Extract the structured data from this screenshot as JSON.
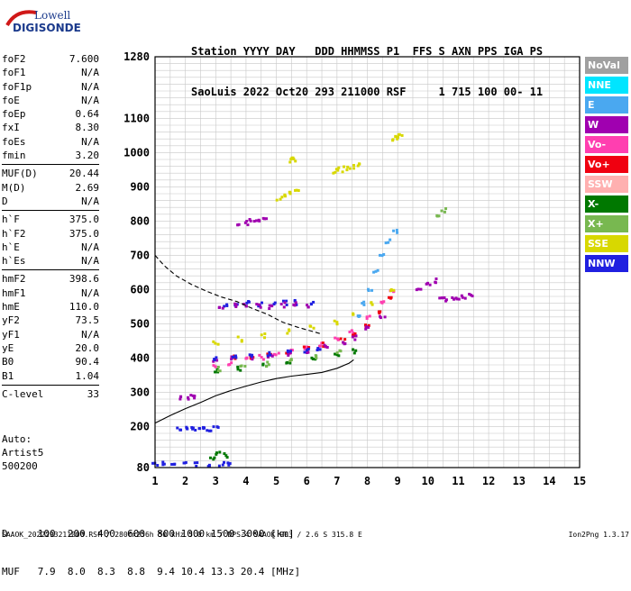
{
  "logo": {
    "line1": "Lowell",
    "line2": "DIGISONDE"
  },
  "header": {
    "line1": "Station YYYY DAY   DDD HHMMSS P1  FFS S AXN PPS IGA PS",
    "line2": "SaoLuis 2022 Oct20 293 211000 RSF     1 715 100 00- 11"
  },
  "params_groups": [
    [
      [
        "foF2",
        "7.600"
      ],
      [
        "foF1",
        "N/A"
      ],
      [
        "foF1p",
        "N/A"
      ],
      [
        "foE",
        "N/A"
      ],
      [
        "foEp",
        "0.64"
      ],
      [
        "fxI",
        "8.30"
      ],
      [
        "foEs",
        "N/A"
      ],
      [
        "fmin",
        "3.20"
      ]
    ],
    [
      [
        "MUF(D)",
        "20.44"
      ],
      [
        "M(D)",
        "2.69"
      ],
      [
        "D",
        "N/A"
      ]
    ],
    [
      [
        "h`F",
        "375.0"
      ],
      [
        "h`F2",
        "375.0"
      ],
      [
        "h`E",
        "N/A"
      ],
      [
        "h`Es",
        "N/A"
      ]
    ],
    [
      [
        "hmF2",
        "398.6"
      ],
      [
        "hmF1",
        "N/A"
      ],
      [
        "hmE",
        "110.0"
      ],
      [
        "yF2",
        "73.5"
      ],
      [
        "yF1",
        "N/A"
      ],
      [
        "yE",
        "20.0"
      ],
      [
        "B0",
        "90.4"
      ],
      [
        "B1",
        "1.04"
      ]
    ],
    [
      [
        "C-level",
        "33"
      ]
    ]
  ],
  "misc": {
    "auto": "Auto:",
    "artist": "Artist5",
    "code": "500200"
  },
  "bottom": {
    "d_row": "D     100  200  400  600  800 1000 1500 3000 [km]",
    "muf_row": "MUF   7.9  8.0  8.3  8.8  9.4 10.4 13.3 20.4 [MHz]"
  },
  "footer": {
    "left": "SAAOK_2022293211000.RSF / 280fx256h 50 kHz 5.0 km / DPS-4 SAAOK 903 / 2.6 S 315.8 E",
    "right": "Ion2Png 1.3.17"
  },
  "legend": [
    {
      "label": "NoVal",
      "color": "#a0a0a0",
      "text": "#ffffff"
    },
    {
      "label": "NNE",
      "color": "#00e5ff",
      "text": "#ffffff"
    },
    {
      "label": "E",
      "color": "#4aa8f0",
      "text": "#ffffff"
    },
    {
      "label": "W",
      "color": "#a000b0",
      "text": "#ffffff"
    },
    {
      "label": "Vo-",
      "color": "#ff3fb0",
      "text": "#ffffff"
    },
    {
      "label": "Vo+",
      "color": "#f00010",
      "text": "#ffffff"
    },
    {
      "label": "SSW",
      "color": "#ffb0b0",
      "text": "#ffffff"
    },
    {
      "label": "X-",
      "color": "#007800",
      "text": "#ffffff"
    },
    {
      "label": "X+",
      "color": "#78b850",
      "text": "#ffffff"
    },
    {
      "label": "SSE",
      "color": "#d8d800",
      "text": "#ffffff"
    },
    {
      "label": "NNW",
      "color": "#2020e0",
      "text": "#ffffff"
    }
  ],
  "chart_data": {
    "type": "scatter",
    "xlim": [
      1,
      15
    ],
    "ylim": [
      80,
      1280
    ],
    "xticks": [
      1,
      2,
      3,
      4,
      5,
      6,
      7,
      8,
      9,
      10,
      11,
      12,
      13,
      14,
      15
    ],
    "yticks": [
      80,
      200,
      300,
      400,
      500,
      600,
      700,
      800,
      900,
      1000,
      1100,
      1280
    ],
    "grid": true,
    "curves": [
      {
        "style": "dashed",
        "x": [
          1.0,
          1.3,
          1.7,
          2.2,
          2.7,
          3.2,
          3.7,
          4.2,
          4.7,
          5.2,
          5.7,
          6.1,
          6.5
        ],
        "y": [
          700,
          670,
          640,
          615,
          595,
          578,
          565,
          545,
          528,
          505,
          490,
          480,
          470
        ]
      },
      {
        "style": "solid",
        "x": [
          1.0,
          1.5,
          2.0,
          2.5,
          3.0,
          3.5,
          4.0,
          4.5,
          5.0,
          5.5,
          6.0,
          6.5,
          7.0,
          7.4,
          7.55
        ],
        "y": [
          210,
          232,
          252,
          270,
          290,
          305,
          318,
          330,
          340,
          347,
          352,
          358,
          370,
          385,
          395
        ]
      }
    ],
    "traces": [
      {
        "color": "#ff3fb0",
        "x": [
          3.0,
          3.5,
          4.0,
          4.5,
          5.0,
          5.5,
          6.0,
          6.5,
          7.0,
          7.5,
          8.0,
          8.5,
          8.8
        ],
        "y": [
          375,
          385,
          395,
          402,
          410,
          420,
          430,
          440,
          455,
          475,
          520,
          560,
          600
        ]
      },
      {
        "color": "#f00010",
        "x": [
          3.6,
          4.2,
          4.8,
          5.4,
          6.0,
          6.6,
          7.2,
          7.6,
          8.0,
          8.4,
          8.8
        ],
        "y": [
          400,
          405,
          410,
          418,
          428,
          438,
          450,
          465,
          490,
          530,
          580
        ]
      },
      {
        "color": "#a000b0",
        "x": [
          3.0,
          3.6,
          4.2,
          4.8,
          5.4,
          6.0,
          6.6,
          7.2,
          7.6,
          8.0,
          8.5
        ],
        "y": [
          395,
          398,
          402,
          408,
          414,
          422,
          432,
          445,
          460,
          485,
          520
        ]
      },
      {
        "color": "#2020e0",
        "x": [
          3.0,
          3.6,
          4.2,
          4.8,
          5.4,
          6.0,
          6.4
        ],
        "y": [
          400,
          402,
          405,
          410,
          415,
          420,
          425
        ]
      },
      {
        "color": "#007800",
        "x": [
          3.0,
          3.8,
          4.6,
          5.4,
          6.2,
          7.0,
          7.6
        ],
        "y": [
          365,
          370,
          378,
          388,
          398,
          410,
          420
        ]
      },
      {
        "color": "#78b850",
        "x": [
          3.1,
          3.9,
          4.7,
          5.5,
          6.3,
          7.1
        ],
        "y": [
          368,
          374,
          382,
          392,
          402,
          415
        ]
      },
      {
        "color": "#d8d800",
        "x": [
          3.0,
          3.8,
          4.6,
          5.4,
          6.2,
          7.0,
          7.6,
          8.2,
          8.8
        ],
        "y": [
          445,
          455,
          465,
          478,
          490,
          505,
          525,
          560,
          600
        ]
      },
      {
        "color": "#4aa8f0",
        "x": [
          7.7,
          7.9,
          8.1,
          8.3,
          8.5,
          8.7,
          8.9
        ],
        "y": [
          520,
          560,
          600,
          650,
          700,
          740,
          770
        ]
      },
      {
        "color": "#2020e0",
        "x": [
          3.3,
          3.7,
          4.1,
          4.5,
          4.9,
          5.3,
          5.7,
          6.2
        ],
        "y": [
          555,
          558,
          560,
          558,
          556,
          560,
          562,
          558
        ]
      },
      {
        "color": "#a000b0",
        "x": [
          3.2,
          3.6,
          4.0,
          4.4,
          4.8,
          5.2,
          5.6,
          6.0
        ],
        "y": [
          548,
          552,
          555,
          553,
          550,
          555,
          558,
          552
        ]
      },
      {
        "color": "#d8d800",
        "x": [
          5.1,
          5.3,
          5.5,
          5.7
        ],
        "y": [
          865,
          872,
          880,
          885
        ]
      },
      {
        "color": "#a000b0",
        "x": [
          3.8,
          4.0,
          4.2,
          4.4,
          4.6
        ],
        "y": [
          790,
          795,
          800,
          805,
          810
        ]
      },
      {
        "color": "#d8d800",
        "x": [
          6.9,
          7.1,
          7.3,
          7.5,
          7.7
        ],
        "y": [
          945,
          950,
          955,
          958,
          962
        ]
      },
      {
        "color": "#d8d800",
        "x": [
          8.9,
          9.0,
          9.1
        ],
        "y": [
          1040,
          1045,
          1048
        ]
      },
      {
        "color": "#d8d800",
        "x": [
          5.5,
          5.6
        ],
        "y": [
          978,
          980
        ]
      },
      {
        "color": "#a000b0",
        "x": [
          10.4,
          10.6,
          10.8,
          11.0,
          11.2,
          11.4
        ],
        "y": [
          570,
          572,
          575,
          578,
          580,
          582
        ]
      },
      {
        "color": "#2020e0",
        "x": [
          1.8,
          2.0,
          2.2,
          2.4,
          2.6,
          2.8,
          3.0
        ],
        "y": [
          193,
          193,
          193,
          193,
          193,
          193,
          193
        ]
      },
      {
        "color": "#2020e0",
        "x": [
          1.0,
          1.3,
          1.6,
          2.0,
          2.4,
          2.8,
          3.2,
          3.4
        ],
        "y": [
          90,
          90,
          90,
          90,
          90,
          90,
          90,
          90
        ]
      },
      {
        "color": "#a000b0",
        "x": [
          1.9,
          2.1,
          2.3
        ],
        "y": [
          285,
          285,
          285
        ]
      },
      {
        "color": "#007800",
        "x": [
          2.9,
          3.1,
          3.3
        ],
        "y": [
          110,
          120,
          115
        ]
      },
      {
        "color": "#a000b0",
        "x": [
          9.7,
          10.0,
          10.3
        ],
        "y": [
          605,
          615,
          625
        ]
      },
      {
        "color": "#78b850",
        "x": [
          10.3,
          10.5
        ],
        "y": [
          820,
          830
        ]
      }
    ]
  }
}
